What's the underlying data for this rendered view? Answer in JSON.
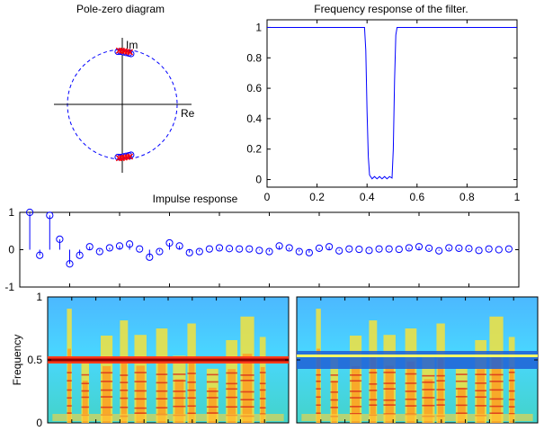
{
  "colors": {
    "figure_background": "#ffffff",
    "line": "#0000ff",
    "stem_marker": "#0000ff",
    "pole_marker": "#ff0000",
    "zero_marker": "#0000ff",
    "axes": "#000000",
    "spectrogram_background": "#3fc0ff"
  },
  "chart_data": [
    {
      "id": "pole_zero",
      "type": "scatter",
      "title": "Pole-zero diagram",
      "xlabel": "Re",
      "ylabel": "Im",
      "xlim": [
        -1.2,
        1.2
      ],
      "ylim": [
        -1.2,
        1.2
      ],
      "unit_circle": true,
      "unit_circle_style": "dashed",
      "grid": false,
      "series": [
        {
          "marker": "o",
          "points": [
            [
              -0.08,
              0.96
            ],
            [
              -0.03,
              0.96
            ],
            [
              0.02,
              0.95
            ],
            [
              0.07,
              0.94
            ],
            [
              0.12,
              0.93
            ],
            [
              0.16,
              0.92
            ],
            [
              -0.08,
              -0.96
            ],
            [
              -0.03,
              -0.96
            ],
            [
              0.02,
              -0.95
            ],
            [
              0.07,
              -0.94
            ],
            [
              0.12,
              -0.93
            ],
            [
              0.16,
              -0.92
            ]
          ]
        },
        {
          "marker": "x",
          "points": [
            [
              -0.06,
              0.98
            ],
            [
              -0.01,
              0.98
            ],
            [
              0.04,
              0.97
            ],
            [
              0.09,
              0.96
            ],
            [
              0.14,
              0.95
            ],
            [
              -0.06,
              -0.98
            ],
            [
              -0.01,
              -0.98
            ],
            [
              0.04,
              -0.97
            ],
            [
              0.09,
              -0.96
            ],
            [
              0.14,
              -0.95
            ]
          ]
        }
      ]
    },
    {
      "id": "freq_response",
      "type": "line",
      "title": "Frequency response of the filter.",
      "xlim": [
        0,
        1
      ],
      "ylim": [
        -0.05,
        1.05
      ],
      "xticks": [
        "0",
        "0.2",
        "0.4",
        "0.6",
        "0.8",
        "1"
      ],
      "yticks": [
        "0",
        "0.2",
        "0.4",
        "0.6",
        "0.8",
        "1"
      ],
      "grid": false,
      "x": [
        0,
        0.39,
        0.395,
        0.4,
        0.405,
        0.41,
        0.42,
        0.43,
        0.44,
        0.45,
        0.46,
        0.47,
        0.48,
        0.49,
        0.5,
        0.505,
        0.51,
        0.515,
        0.52,
        1.0
      ],
      "y": [
        1,
        1,
        0.85,
        0.45,
        0.15,
        0.03,
        0.005,
        0.02,
        0.005,
        0.02,
        0.005,
        0.02,
        0.005,
        0.02,
        0.01,
        0.2,
        0.65,
        0.95,
        1,
        1
      ]
    },
    {
      "id": "impulse",
      "type": "stem",
      "title": "Impulse response",
      "xlim": [
        0,
        50
      ],
      "ylim": [
        -1,
        1
      ],
      "yticks": [
        "-1",
        "0",
        "1"
      ],
      "grid": false,
      "x": [
        1,
        2,
        3,
        4,
        5,
        6,
        7,
        8,
        9,
        10,
        11,
        12,
        13,
        14,
        15,
        16,
        17,
        18,
        19,
        20,
        21,
        22,
        23,
        24,
        25,
        26,
        27,
        28,
        29,
        30,
        31,
        32,
        33,
        34,
        35,
        36,
        37,
        38,
        39,
        40,
        41,
        42,
        43,
        44,
        45,
        46,
        47,
        48,
        49
      ],
      "values": [
        1.0,
        -0.15,
        0.92,
        0.28,
        -0.38,
        -0.15,
        0.08,
        -0.05,
        0.05,
        0.1,
        0.15,
        0.02,
        -0.2,
        -0.05,
        0.18,
        0.1,
        -0.08,
        -0.05,
        0.02,
        0.05,
        0.03,
        0.02,
        0.02,
        -0.02,
        -0.05,
        0.1,
        0.05,
        -0.05,
        -0.08,
        0.04,
        0.08,
        -0.03,
        0.02,
        0.01,
        -0.02,
        0.02,
        0.02,
        0.01,
        0.05,
        0.08,
        0.04,
        -0.03,
        0.05,
        0.04,
        0.03,
        -0.02,
        0.02,
        0.0,
        0.02
      ]
    },
    {
      "id": "spectrogram_before",
      "type": "heatmap",
      "ylabel": "Frequency",
      "ylim": [
        0,
        1
      ],
      "yticks": [
        "0",
        "0.5",
        "1"
      ],
      "band_at": 0.5,
      "band_kind": "peak",
      "grid": false
    },
    {
      "id": "spectrogram_after",
      "type": "heatmap",
      "ylim": [
        0,
        1
      ],
      "band_at": 0.5,
      "band_kind": "notch",
      "grid": false
    }
  ]
}
